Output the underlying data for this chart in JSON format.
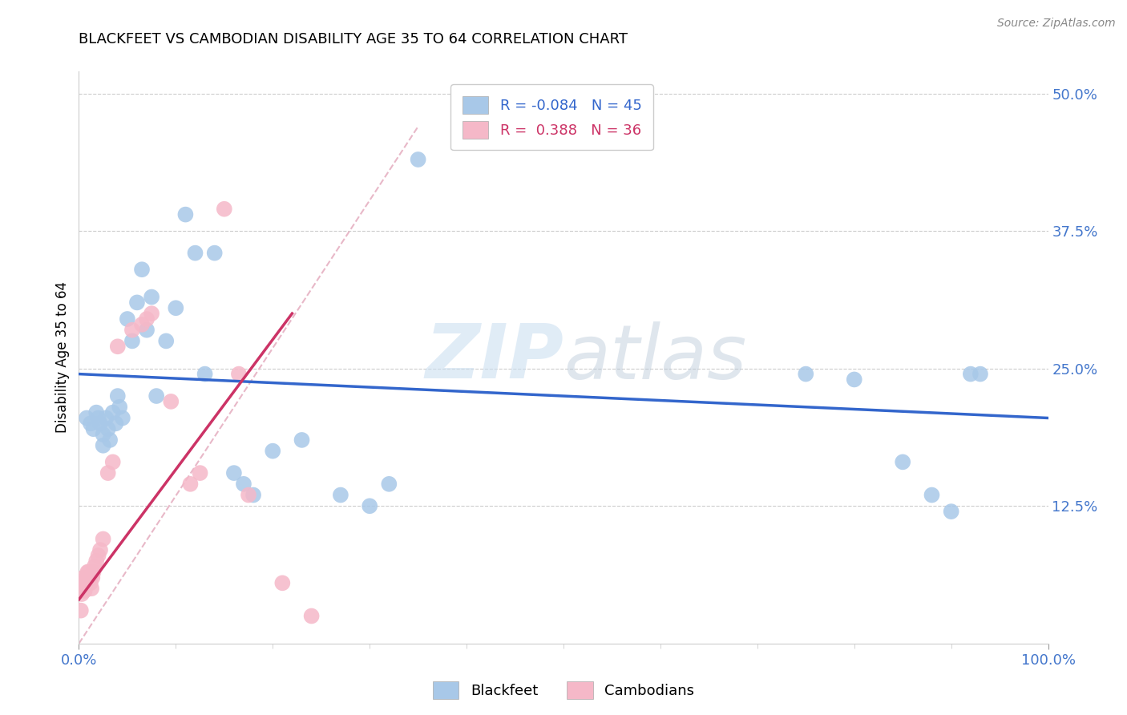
{
  "title": "BLACKFEET VS CAMBODIAN DISABILITY AGE 35 TO 64 CORRELATION CHART",
  "source": "Source: ZipAtlas.com",
  "ylabel": "Disability Age 35 to 64",
  "yticks_labels": [
    "12.5%",
    "25.0%",
    "37.5%",
    "50.0%"
  ],
  "ytick_vals": [
    0.125,
    0.25,
    0.375,
    0.5
  ],
  "xlim": [
    0.0,
    1.0
  ],
  "ylim": [
    0.0,
    0.52
  ],
  "legend_blue_r": "-0.084",
  "legend_blue_n": "45",
  "legend_pink_r": "0.388",
  "legend_pink_n": "36",
  "legend_blue_label": "Blackfeet",
  "legend_pink_label": "Cambodians",
  "watermark_zip": "ZIP",
  "watermark_atlas": "atlas",
  "blue_scatter_x": [
    0.008,
    0.012,
    0.015,
    0.018,
    0.02,
    0.022,
    0.025,
    0.025,
    0.028,
    0.03,
    0.032,
    0.035,
    0.038,
    0.04,
    0.042,
    0.045,
    0.05,
    0.055,
    0.06,
    0.065,
    0.07,
    0.075,
    0.08,
    0.09,
    0.1,
    0.11,
    0.12,
    0.13,
    0.14,
    0.16,
    0.17,
    0.18,
    0.2,
    0.23,
    0.27,
    0.3,
    0.32,
    0.35,
    0.75,
    0.8,
    0.85,
    0.88,
    0.9,
    0.92,
    0.93
  ],
  "blue_scatter_y": [
    0.205,
    0.2,
    0.195,
    0.21,
    0.205,
    0.2,
    0.19,
    0.18,
    0.205,
    0.195,
    0.185,
    0.21,
    0.2,
    0.225,
    0.215,
    0.205,
    0.295,
    0.275,
    0.31,
    0.34,
    0.285,
    0.315,
    0.225,
    0.275,
    0.305,
    0.39,
    0.355,
    0.245,
    0.355,
    0.155,
    0.145,
    0.135,
    0.175,
    0.185,
    0.135,
    0.125,
    0.145,
    0.44,
    0.245,
    0.24,
    0.165,
    0.135,
    0.12,
    0.245,
    0.245
  ],
  "pink_scatter_x": [
    0.002,
    0.003,
    0.004,
    0.005,
    0.005,
    0.006,
    0.007,
    0.008,
    0.009,
    0.01,
    0.01,
    0.011,
    0.012,
    0.013,
    0.014,
    0.015,
    0.016,
    0.018,
    0.02,
    0.022,
    0.025,
    0.03,
    0.035,
    0.04,
    0.055,
    0.065,
    0.07,
    0.075,
    0.095,
    0.115,
    0.125,
    0.15,
    0.165,
    0.175,
    0.21,
    0.24
  ],
  "pink_scatter_y": [
    0.03,
    0.045,
    0.05,
    0.055,
    0.06,
    0.048,
    0.055,
    0.06,
    0.065,
    0.06,
    0.065,
    0.06,
    0.055,
    0.05,
    0.06,
    0.065,
    0.07,
    0.075,
    0.08,
    0.085,
    0.095,
    0.155,
    0.165,
    0.27,
    0.285,
    0.29,
    0.295,
    0.3,
    0.22,
    0.145,
    0.155,
    0.395,
    0.245,
    0.135,
    0.055,
    0.025
  ],
  "blue_line_x": [
    0.0,
    1.0
  ],
  "blue_line_y": [
    0.245,
    0.205
  ],
  "pink_line_x": [
    0.0,
    0.22
  ],
  "pink_line_y": [
    0.04,
    0.3
  ],
  "dash_line_x": [
    0.0,
    0.35
  ],
  "dash_line_y": [
    0.0,
    0.47
  ],
  "blue_dot_color": "#a8c8e8",
  "pink_dot_color": "#f5b8c8",
  "blue_line_color": "#3366cc",
  "pink_line_color": "#cc3366",
  "dash_line_color": "#e8b8c8",
  "title_fontsize": 13,
  "axis_tick_color": "#4477cc",
  "grid_color": "#cccccc"
}
